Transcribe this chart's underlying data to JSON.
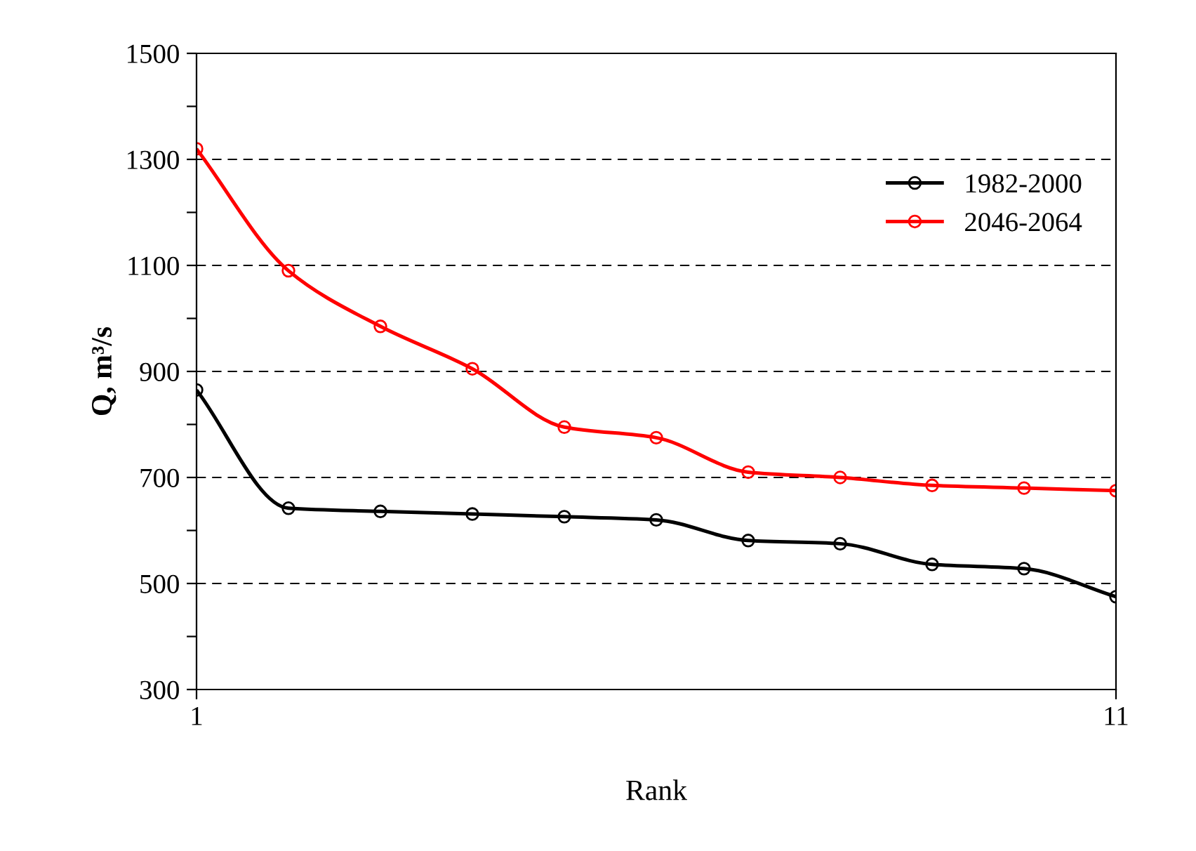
{
  "chart_data": {
    "type": "line",
    "xlabel": "Rank",
    "ylabel": "Q, m³/s",
    "x": [
      1,
      2,
      3,
      4,
      5,
      6,
      7,
      8,
      9,
      10,
      11
    ],
    "series": [
      {
        "name": "1982-2000",
        "color": "#000000",
        "values": [
          865,
          642,
          636,
          631,
          626,
          620,
          581,
          575,
          536,
          528,
          475
        ]
      },
      {
        "name": "2046-2064",
        "color": "#ff0000",
        "values": [
          1320,
          1090,
          985,
          905,
          795,
          775,
          710,
          700,
          685,
          680,
          675
        ]
      }
    ],
    "xlim": [
      1,
      11
    ],
    "xticks": [
      1,
      11
    ],
    "ylim": [
      300,
      1500
    ],
    "yticks": [
      300,
      {
        "value": 400,
        "label": null
      },
      500,
      {
        "value": 600,
        "label": null
      },
      700,
      {
        "value": 800,
        "label": null
      },
      900,
      {
        "value": 1000,
        "label": null
      },
      1100,
      {
        "value": 1200,
        "label": null
      },
      1300,
      {
        "value": 1400,
        "label": null
      },
      1500
    ],
    "grid": "y",
    "legend": "top right",
    "marker": "circle",
    "line_style": "solid"
  }
}
